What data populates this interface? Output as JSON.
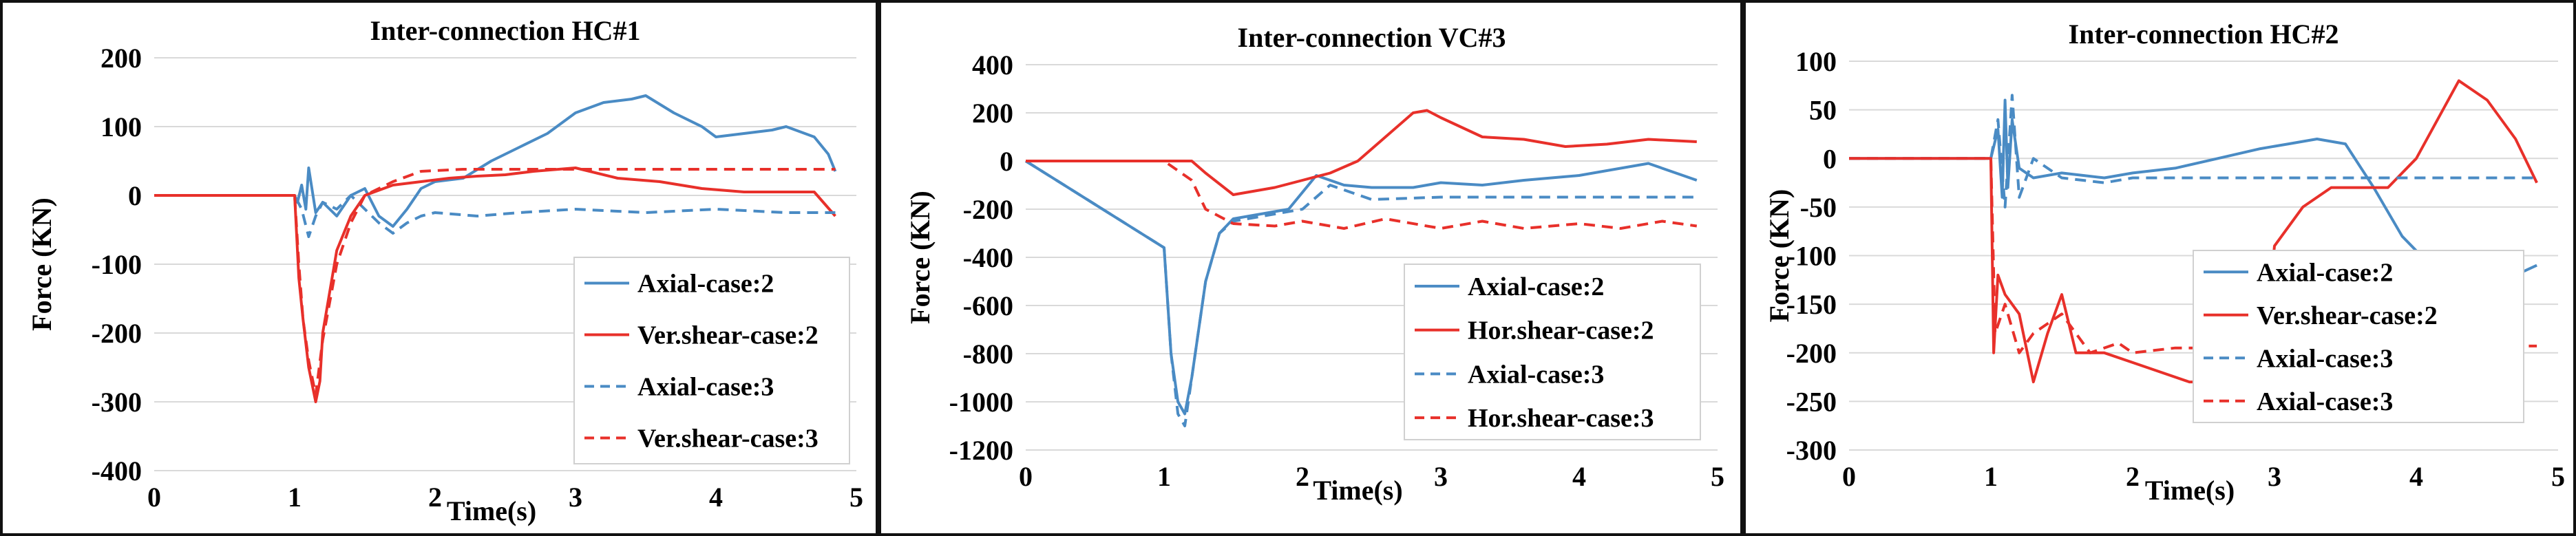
{
  "chart_data": [
    {
      "type": "line",
      "title": "Inter-connection HC#1",
      "xlabel": "Time(s)",
      "ylabel": "Force (KN)",
      "xlim": [
        0,
        5
      ],
      "ylim": [
        -400,
        200
      ],
      "xticks": [
        0,
        1,
        2,
        3,
        4,
        5
      ],
      "yticks": [
        200,
        100,
        0,
        -100,
        -200,
        -300,
        -400
      ],
      "grid": "horizontal",
      "legend": "bottom-right",
      "series": [
        {
          "name": "Axial-case:2",
          "color": "#4a8bc4",
          "dash": "solid",
          "x": [
            0,
            0.5,
            1.0,
            1.02,
            1.05,
            1.08,
            1.1,
            1.15,
            1.2,
            1.3,
            1.4,
            1.5,
            1.6,
            1.7,
            1.8,
            1.9,
            2.0,
            2.2,
            2.4,
            2.6,
            2.8,
            3.0,
            3.2,
            3.4,
            3.5,
            3.7,
            3.9,
            4.0,
            4.2,
            4.4,
            4.5,
            4.7,
            4.8,
            4.85
          ],
          "y": [
            0,
            0,
            0,
            -10,
            15,
            -20,
            40,
            -25,
            -10,
            -30,
            0,
            10,
            -30,
            -45,
            -20,
            10,
            20,
            25,
            50,
            70,
            90,
            120,
            135,
            140,
            145,
            120,
            100,
            85,
            90,
            95,
            100,
            85,
            60,
            35
          ]
        },
        {
          "name": "Ver.shear-case:2",
          "color": "#e8302a",
          "dash": "solid",
          "x": [
            0,
            0.5,
            1.0,
            1.03,
            1.06,
            1.1,
            1.15,
            1.18,
            1.2,
            1.3,
            1.4,
            1.5,
            1.7,
            1.9,
            2.1,
            2.3,
            2.5,
            2.7,
            3.0,
            3.3,
            3.6,
            3.9,
            4.2,
            4.5,
            4.7,
            4.85
          ],
          "y": [
            0,
            0,
            0,
            -120,
            -180,
            -250,
            -300,
            -270,
            -200,
            -80,
            -30,
            0,
            15,
            20,
            25,
            28,
            30,
            35,
            40,
            25,
            20,
            10,
            5,
            5,
            5,
            -30
          ]
        },
        {
          "name": "Axial-case:3",
          "color": "#4a8bc4",
          "dash": "dashed",
          "x": [
            0,
            0.5,
            1.0,
            1.05,
            1.1,
            1.15,
            1.2,
            1.3,
            1.4,
            1.5,
            1.6,
            1.7,
            1.8,
            1.9,
            2.0,
            2.3,
            2.6,
            3.0,
            3.5,
            4.0,
            4.5,
            4.85
          ],
          "y": [
            0,
            0,
            0,
            -20,
            -60,
            -30,
            -10,
            -20,
            0,
            -20,
            -40,
            -55,
            -40,
            -30,
            -25,
            -30,
            -25,
            -20,
            -25,
            -20,
            -25,
            -25
          ]
        },
        {
          "name": "Ver.shear-case:3",
          "color": "#e8302a",
          "dash": "dashed",
          "x": [
            0,
            0.5,
            1.0,
            1.03,
            1.06,
            1.1,
            1.15,
            1.2,
            1.3,
            1.4,
            1.5,
            1.7,
            1.9,
            2.2,
            2.6,
            3.0,
            3.5,
            4.0,
            4.5,
            4.85
          ],
          "y": [
            0,
            0,
            0,
            -100,
            -180,
            -240,
            -290,
            -210,
            -100,
            -40,
            0,
            20,
            35,
            38,
            38,
            38,
            38,
            38,
            38,
            38
          ]
        }
      ]
    },
    {
      "type": "line",
      "title": "Inter-connection VC#3",
      "xlabel": "Time(s)",
      "ylabel": "Force (KN)",
      "xlim": [
        0,
        5
      ],
      "ylim": [
        -1200,
        400
      ],
      "xticks": [
        0,
        1,
        2,
        3,
        4,
        5
      ],
      "yticks": [
        400,
        200,
        0,
        -200,
        -400,
        -600,
        -800,
        -1000,
        -1200
      ],
      "grid": "horizontal",
      "legend": "bottom-right",
      "series": [
        {
          "name": "Axial-case:2",
          "color": "#4a8bc4",
          "dash": "solid",
          "x": [
            0,
            0.5,
            1.0,
            1.05,
            1.1,
            1.15,
            1.2,
            1.3,
            1.4,
            1.5,
            1.7,
            1.9,
            2.1,
            2.3,
            2.5,
            2.8,
            3.0,
            3.3,
            3.6,
            4.0,
            4.5,
            4.85
          ],
          "y": [
            0,
            -180,
            -360,
            -800,
            -1000,
            -1050,
            -900,
            -500,
            -300,
            -240,
            -220,
            -200,
            -60,
            -100,
            -110,
            -110,
            -90,
            -100,
            -80,
            -60,
            -10,
            -80
          ]
        },
        {
          "name": "Hor.shear-case:2",
          "color": "#e8302a",
          "dash": "solid",
          "x": [
            0,
            0.5,
            1.0,
            1.2,
            1.3,
            1.5,
            1.8,
            2.0,
            2.2,
            2.4,
            2.6,
            2.8,
            2.9,
            3.0,
            3.3,
            3.6,
            3.9,
            4.2,
            4.5,
            4.85
          ],
          "y": [
            0,
            0,
            0,
            0,
            -50,
            -140,
            -110,
            -80,
            -50,
            0,
            100,
            200,
            210,
            180,
            100,
            90,
            60,
            70,
            90,
            80
          ]
        },
        {
          "name": "Axial-case:3",
          "color": "#4a8bc4",
          "dash": "dashed",
          "x": [
            0,
            0.5,
            1.0,
            1.05,
            1.1,
            1.15,
            1.2,
            1.3,
            1.4,
            1.5,
            1.8,
            2.0,
            2.2,
            2.5,
            3.0,
            3.5,
            4.0,
            4.5,
            4.85
          ],
          "y": [
            0,
            -180,
            -360,
            -800,
            -1050,
            -1100,
            -900,
            -500,
            -300,
            -250,
            -220,
            -200,
            -100,
            -160,
            -150,
            -150,
            -150,
            -150,
            -150
          ]
        },
        {
          "name": "Hor.shear-case:3",
          "color": "#e8302a",
          "dash": "dashed",
          "x": [
            0,
            0.5,
            1.0,
            1.2,
            1.3,
            1.5,
            1.8,
            2.0,
            2.3,
            2.6,
            3.0,
            3.3,
            3.6,
            4.0,
            4.3,
            4.6,
            4.85
          ],
          "y": [
            0,
            0,
            0,
            -80,
            -200,
            -260,
            -270,
            -250,
            -280,
            -240,
            -280,
            -250,
            -280,
            -260,
            -280,
            -250,
            -270
          ]
        }
      ]
    },
    {
      "type": "line",
      "title": "Inter-connection HC#2",
      "xlabel": "Time(s)",
      "ylabel": "Force (KN)",
      "xlim": [
        0,
        5
      ],
      "ylim": [
        -300,
        100
      ],
      "xticks": [
        0,
        1,
        2,
        3,
        4,
        5
      ],
      "yticks": [
        100,
        50,
        0,
        -50,
        -100,
        -150,
        -200,
        -250,
        -300
      ],
      "grid": "horizontal",
      "legend": "bottom-right",
      "series": [
        {
          "name": "Axial-case:2",
          "color": "#4a8bc4",
          "dash": "solid",
          "x": [
            0,
            0.5,
            1.0,
            1.05,
            1.08,
            1.1,
            1.12,
            1.15,
            1.2,
            1.3,
            1.5,
            1.8,
            2.0,
            2.3,
            2.6,
            2.9,
            3.1,
            3.3,
            3.5,
            3.7,
            3.9,
            4.1,
            4.3,
            4.5,
            4.7,
            4.85
          ],
          "y": [
            0,
            0,
            0,
            30,
            -40,
            60,
            -30,
            40,
            -10,
            -20,
            -15,
            -20,
            -15,
            -10,
            0,
            10,
            15,
            20,
            15,
            -30,
            -80,
            -110,
            -140,
            -130,
            -120,
            -110
          ]
        },
        {
          "name": "Ver.shear-case:2",
          "color": "#e8302a",
          "dash": "solid",
          "x": [
            0,
            0.5,
            1.0,
            1.02,
            1.05,
            1.1,
            1.2,
            1.3,
            1.4,
            1.5,
            1.6,
            1.8,
            2.0,
            2.2,
            2.4,
            2.6,
            2.8,
            2.9,
            3.0,
            3.2,
            3.4,
            3.6,
            3.8,
            4.0,
            4.3,
            4.5,
            4.7,
            4.85
          ],
          "y": [
            0,
            0,
            0,
            -200,
            -120,
            -140,
            -160,
            -230,
            -180,
            -140,
            -200,
            -200,
            -210,
            -220,
            -230,
            -230,
            -240,
            -240,
            -90,
            -50,
            -30,
            -30,
            -30,
            0,
            80,
            60,
            20,
            -25
          ]
        },
        {
          "name": "Axial-case:3",
          "color": "#4a8bc4",
          "dash": "dashed",
          "x": [
            0,
            0.5,
            1.0,
            1.05,
            1.1,
            1.15,
            1.2,
            1.3,
            1.5,
            1.8,
            2.0,
            2.5,
            3.0,
            3.5,
            4.0,
            4.5,
            4.85
          ],
          "y": [
            0,
            0,
            0,
            40,
            -50,
            65,
            -40,
            0,
            -20,
            -25,
            -20,
            -20,
            -20,
            -20,
            -20,
            -20,
            -20
          ]
        },
        {
          "name": "Axial-case:3",
          "color": "#e8302a",
          "dash": "dashed",
          "x": [
            0,
            0.5,
            1.0,
            1.03,
            1.1,
            1.2,
            1.3,
            1.5,
            1.7,
            1.9,
            2.0,
            2.3,
            2.6,
            3.0,
            3.5,
            4.0,
            4.5,
            4.85
          ],
          "y": [
            0,
            0,
            0,
            -180,
            -150,
            -200,
            -180,
            -160,
            -200,
            -190,
            -200,
            -195,
            -195,
            -195,
            -193,
            -193,
            -193,
            -193
          ]
        }
      ]
    }
  ]
}
